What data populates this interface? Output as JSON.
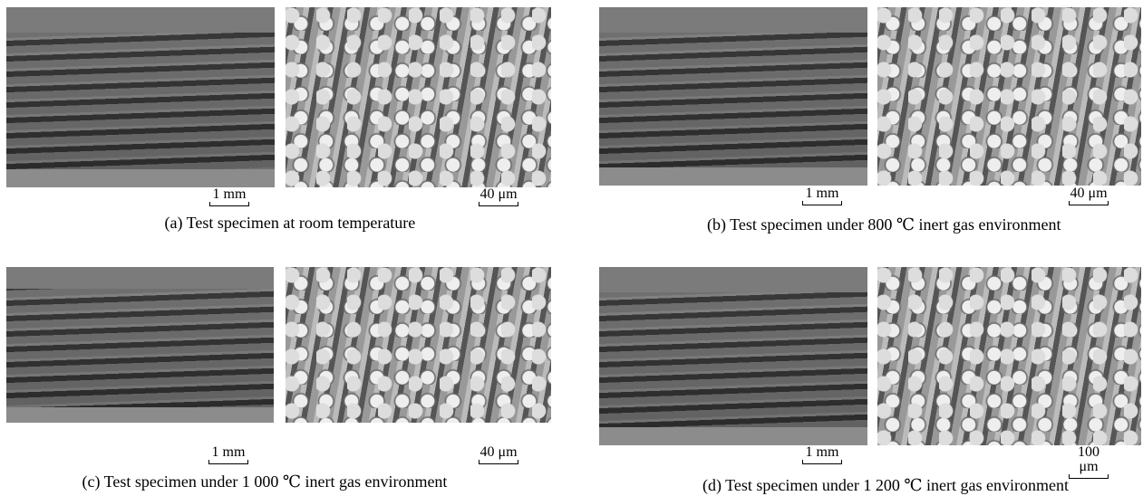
{
  "panels": [
    {
      "caption": "(a) Test specimen at room temperature",
      "scale_left": "1 mm",
      "scale_right": "40 μm"
    },
    {
      "caption": "(b) Test specimen under 800 ℃ inert gas environment",
      "scale_left": "1 mm",
      "scale_right": "40 μm"
    },
    {
      "caption": "(c) Test specimen under 1 000 ℃ inert gas environment",
      "scale_left": "1 mm",
      "scale_right": "40 μm"
    },
    {
      "caption": "(d) Test specimen under 1 200 ℃ inert gas environment",
      "scale_left": "1 mm",
      "scale_right": "100 μm"
    }
  ]
}
